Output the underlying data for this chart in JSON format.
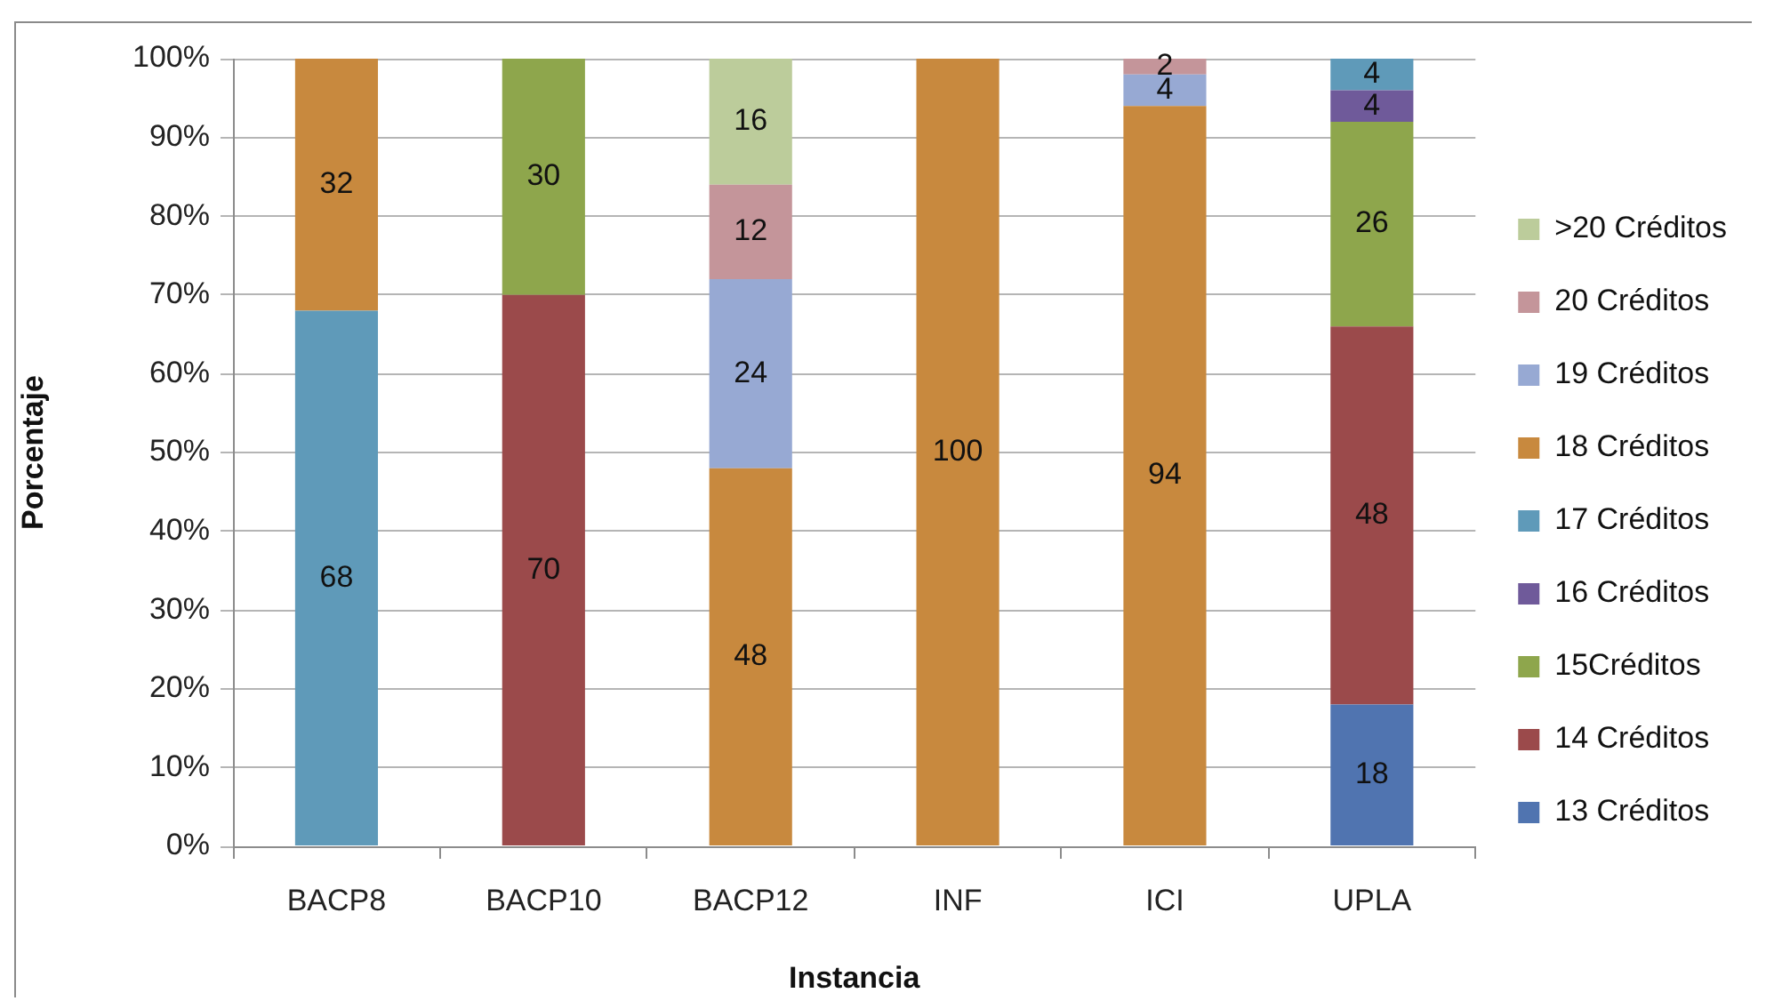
{
  "chart_data": {
    "type": "bar",
    "stacked": true,
    "xlabel": "Instancia",
    "ylabel": "Porcentaje",
    "categories": [
      "BACP8",
      "BACP10",
      "BACP12",
      "INF",
      "ICI",
      "UPLA"
    ],
    "series": [
      {
        "name": "13 Créditos",
        "color": "#5074b0",
        "values": [
          null,
          null,
          null,
          null,
          null,
          18
        ]
      },
      {
        "name": "14 Créditos",
        "color": "#9b4a4b",
        "values": [
          null,
          70,
          null,
          null,
          null,
          48
        ]
      },
      {
        "name": "15Créditos",
        "color": "#8ea64c",
        "values": [
          null,
          30,
          null,
          null,
          null,
          26
        ]
      },
      {
        "name": "16 Créditos",
        "color": "#6f5a9a",
        "values": [
          null,
          null,
          null,
          null,
          null,
          4
        ]
      },
      {
        "name": "17 Créditos",
        "color": "#5f9ab9",
        "values": [
          68,
          null,
          null,
          null,
          null,
          4
        ]
      },
      {
        "name": "18 Créditos",
        "color": "#c8893e",
        "values": [
          32,
          null,
          48,
          100,
          94,
          null
        ]
      },
      {
        "name": "19 Créditos",
        "color": "#97a9d3",
        "values": [
          null,
          null,
          24,
          null,
          4,
          null
        ]
      },
      {
        "name": "20 Créditos",
        "color": "#c4959a",
        "values": [
          null,
          null,
          12,
          null,
          2,
          null
        ]
      },
      {
        "name": ">20 Créditos",
        "color": "#bccc9b",
        "values": [
          null,
          null,
          16,
          null,
          null,
          null
        ]
      }
    ],
    "ylim": [
      0,
      100
    ],
    "yticks": [
      {
        "value": 0,
        "label": "0%"
      },
      {
        "value": 10,
        "label": "10%"
      },
      {
        "value": 20,
        "label": "20%"
      },
      {
        "value": 30,
        "label": "30%"
      },
      {
        "value": 40,
        "label": "40%"
      },
      {
        "value": 50,
        "label": "50%"
      },
      {
        "value": 60,
        "label": "60%"
      },
      {
        "value": 70,
        "label": "70%"
      },
      {
        "value": 80,
        "label": "80%"
      },
      {
        "value": 90,
        "label": "90%"
      },
      {
        "value": 100,
        "label": "100%"
      }
    ],
    "grid": "y",
    "legend": "right",
    "data_labels": true
  }
}
